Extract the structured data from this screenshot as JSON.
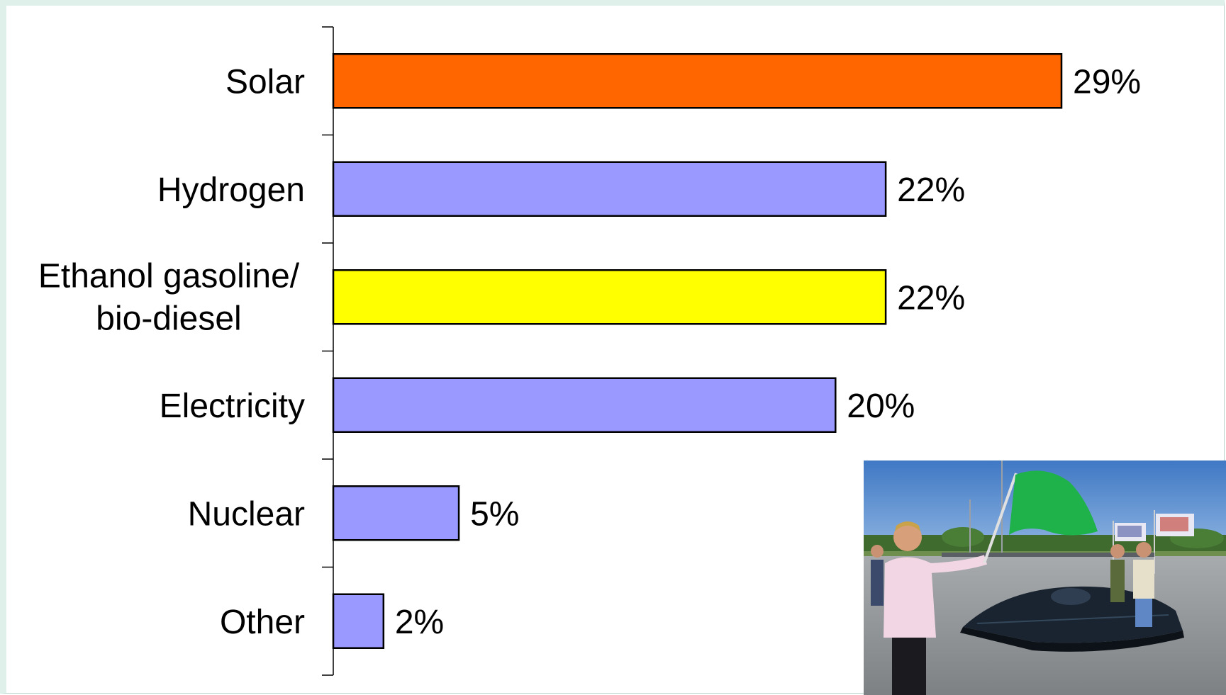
{
  "chart_data": {
    "type": "bar",
    "orientation": "horizontal",
    "categories": [
      "Solar",
      "Hydrogen",
      "Ethanol gasoline/ bio-diesel",
      "Electricity",
      "Nuclear",
      "Other"
    ],
    "label_lines": [
      [
        "Solar"
      ],
      [
        "Hydrogen"
      ],
      [
        "Ethanol gasoline/",
        "bio-diesel"
      ],
      [
        "Electricity"
      ],
      [
        "Nuclear"
      ],
      [
        "Other"
      ]
    ],
    "values": [
      29,
      22,
      22,
      20,
      5,
      2
    ],
    "value_labels": [
      "29%",
      "22%",
      "22%",
      "20%",
      "5%",
      "2%"
    ],
    "unit": "%",
    "xlim": [
      0,
      30
    ],
    "grid": false,
    "legend": "none",
    "colors": [
      "#ff6600",
      "#9999ff",
      "#ffff00",
      "#9999ff",
      "#9999ff",
      "#9999ff"
    ]
  },
  "photo": {
    "subject": "solar-car-race-start",
    "sky_color": "#5b8fd0",
    "ground_color": "#8e9294",
    "flag_color": "#1fb24a"
  }
}
